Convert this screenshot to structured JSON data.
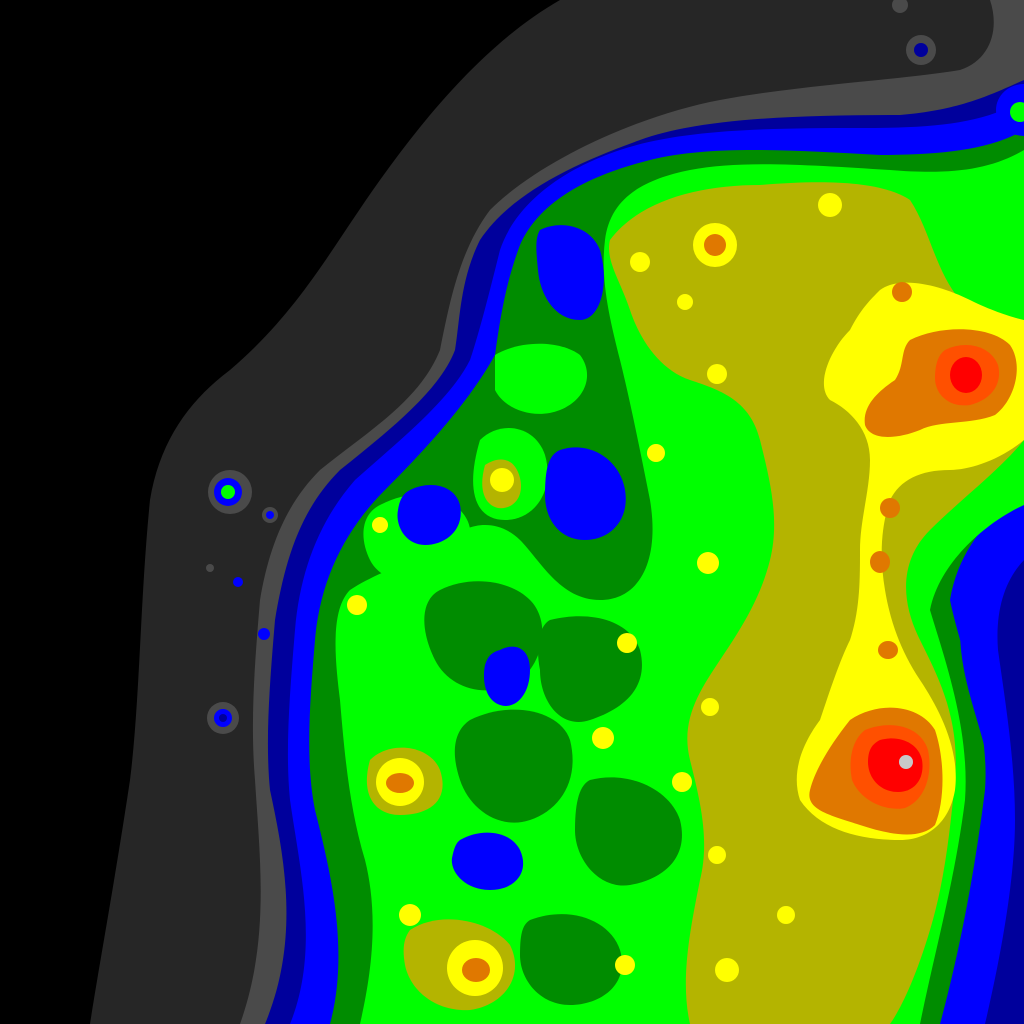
{
  "map": {
    "kind": "light-pollution-contour-map",
    "palette": {
      "background": "#000000",
      "level_1": "#262626",
      "level_2": "#4a4a4a",
      "level_3": "#00009c",
      "level_4": "#0000ff",
      "level_5": "#008c00",
      "level_6": "#00ff00",
      "level_7": "#b4b400",
      "level_8": "#ffff00",
      "level_9": "#e07800",
      "level_10": "#ff5000",
      "level_11": "#ff0000",
      "level_12": "#c8c8c8"
    }
  }
}
